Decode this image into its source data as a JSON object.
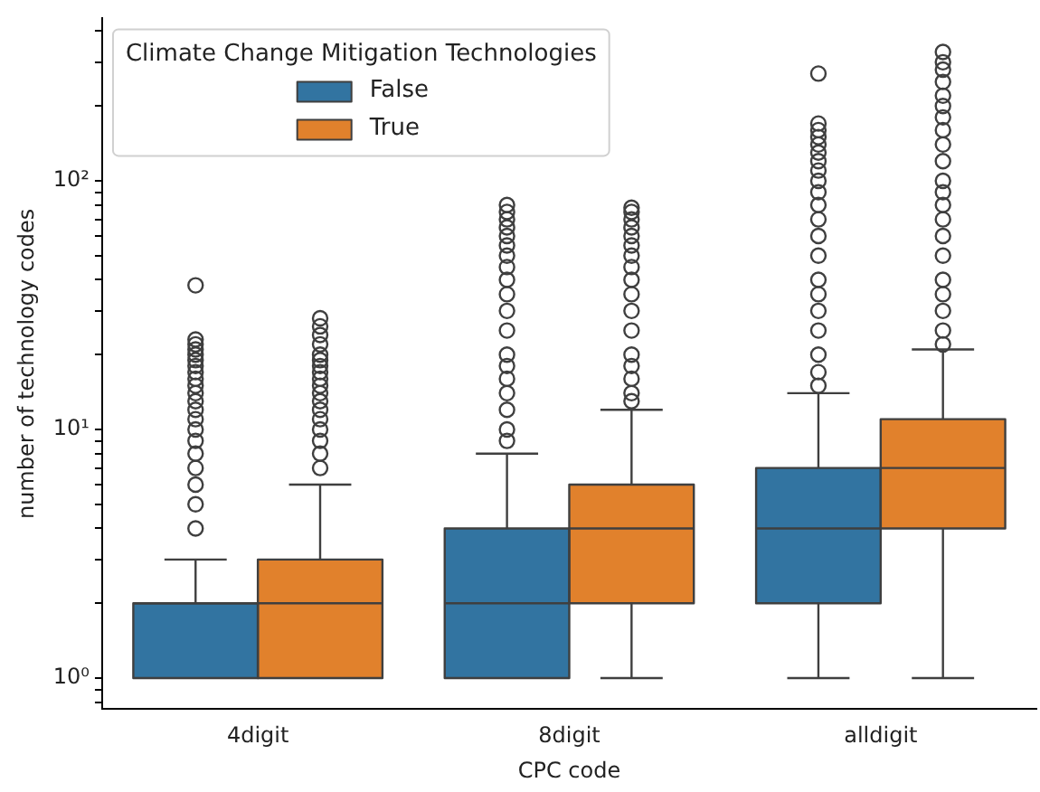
{
  "chart_data": {
    "type": "box",
    "xlabel": "CPC code",
    "ylabel": "number of technology codes",
    "legend_title": "Climate Change Mitigation Technologies",
    "legend": "top left",
    "log": "y",
    "categories": [
      "4digit",
      "8digit",
      "alldigit"
    ],
    "ylim": [
      0.75,
      450
    ],
    "yticks": [
      {
        "value": 0.8,
        "label": null
      },
      {
        "value": 0.9,
        "label": null
      },
      {
        "value": 1,
        "label": "10⁰"
      },
      {
        "value": 2,
        "label": null
      },
      {
        "value": 3,
        "label": null
      },
      {
        "value": 4,
        "label": null
      },
      {
        "value": 5,
        "label": null
      },
      {
        "value": 6,
        "label": null
      },
      {
        "value": 7,
        "label": null
      },
      {
        "value": 8,
        "label": null
      },
      {
        "value": 9,
        "label": null
      },
      {
        "value": 10,
        "label": "10¹"
      },
      {
        "value": 20,
        "label": null
      },
      {
        "value": 30,
        "label": null
      },
      {
        "value": 40,
        "label": null
      },
      {
        "value": 50,
        "label": null
      },
      {
        "value": 60,
        "label": null
      },
      {
        "value": 70,
        "label": null
      },
      {
        "value": 80,
        "label": null
      },
      {
        "value": 90,
        "label": null
      },
      {
        "value": 100,
        "label": "10²"
      },
      {
        "value": 200,
        "label": null
      },
      {
        "value": 300,
        "label": null
      },
      {
        "value": 400,
        "label": null
      }
    ],
    "series": [
      {
        "name": "False",
        "color": "#3274a1",
        "boxes": [
          {
            "low": 1,
            "q1": 1,
            "median": 2,
            "q3": 2,
            "high": 3,
            "outliers": [
              4,
              5,
              6,
              7,
              8,
              9,
              10,
              11,
              12,
              13,
              14,
              15,
              16,
              17,
              18,
              19,
              20,
              21,
              22,
              23,
              38
            ]
          },
          {
            "low": 1,
            "q1": 1,
            "median": 2,
            "q3": 4,
            "high": 8,
            "outliers": [
              9,
              10,
              12,
              14,
              16,
              18,
              20,
              25,
              30,
              35,
              40,
              45,
              50,
              55,
              60,
              65,
              70,
              75,
              80
            ]
          },
          {
            "low": 1,
            "q1": 2,
            "median": 4,
            "q3": 7,
            "high": 14,
            "outliers": [
              15,
              17,
              20,
              25,
              30,
              35,
              40,
              50,
              60,
              70,
              80,
              90,
              100,
              110,
              120,
              130,
              140,
              150,
              160,
              170,
              270
            ]
          }
        ]
      },
      {
        "name": "True",
        "color": "#e1812c",
        "boxes": [
          {
            "low": 1,
            "q1": 1,
            "median": 2,
            "q3": 3,
            "high": 6,
            "outliers": [
              7,
              8,
              9,
              10,
              11,
              12,
              13,
              14,
              15,
              16,
              17,
              18,
              19,
              20,
              22,
              24,
              26,
              28
            ]
          },
          {
            "low": 1,
            "q1": 2,
            "median": 4,
            "q3": 6,
            "high": 12,
            "outliers": [
              13,
              14,
              16,
              18,
              20,
              25,
              30,
              35,
              40,
              45,
              50,
              55,
              60,
              65,
              70,
              75,
              78
            ]
          },
          {
            "low": 1,
            "q1": 4,
            "median": 7,
            "q3": 11,
            "high": 21,
            "outliers": [
              22,
              25,
              30,
              35,
              40,
              50,
              60,
              70,
              80,
              90,
              100,
              120,
              140,
              160,
              180,
              200,
              220,
              250,
              280,
              300,
              330
            ]
          }
        ]
      }
    ],
    "grid": false
  }
}
